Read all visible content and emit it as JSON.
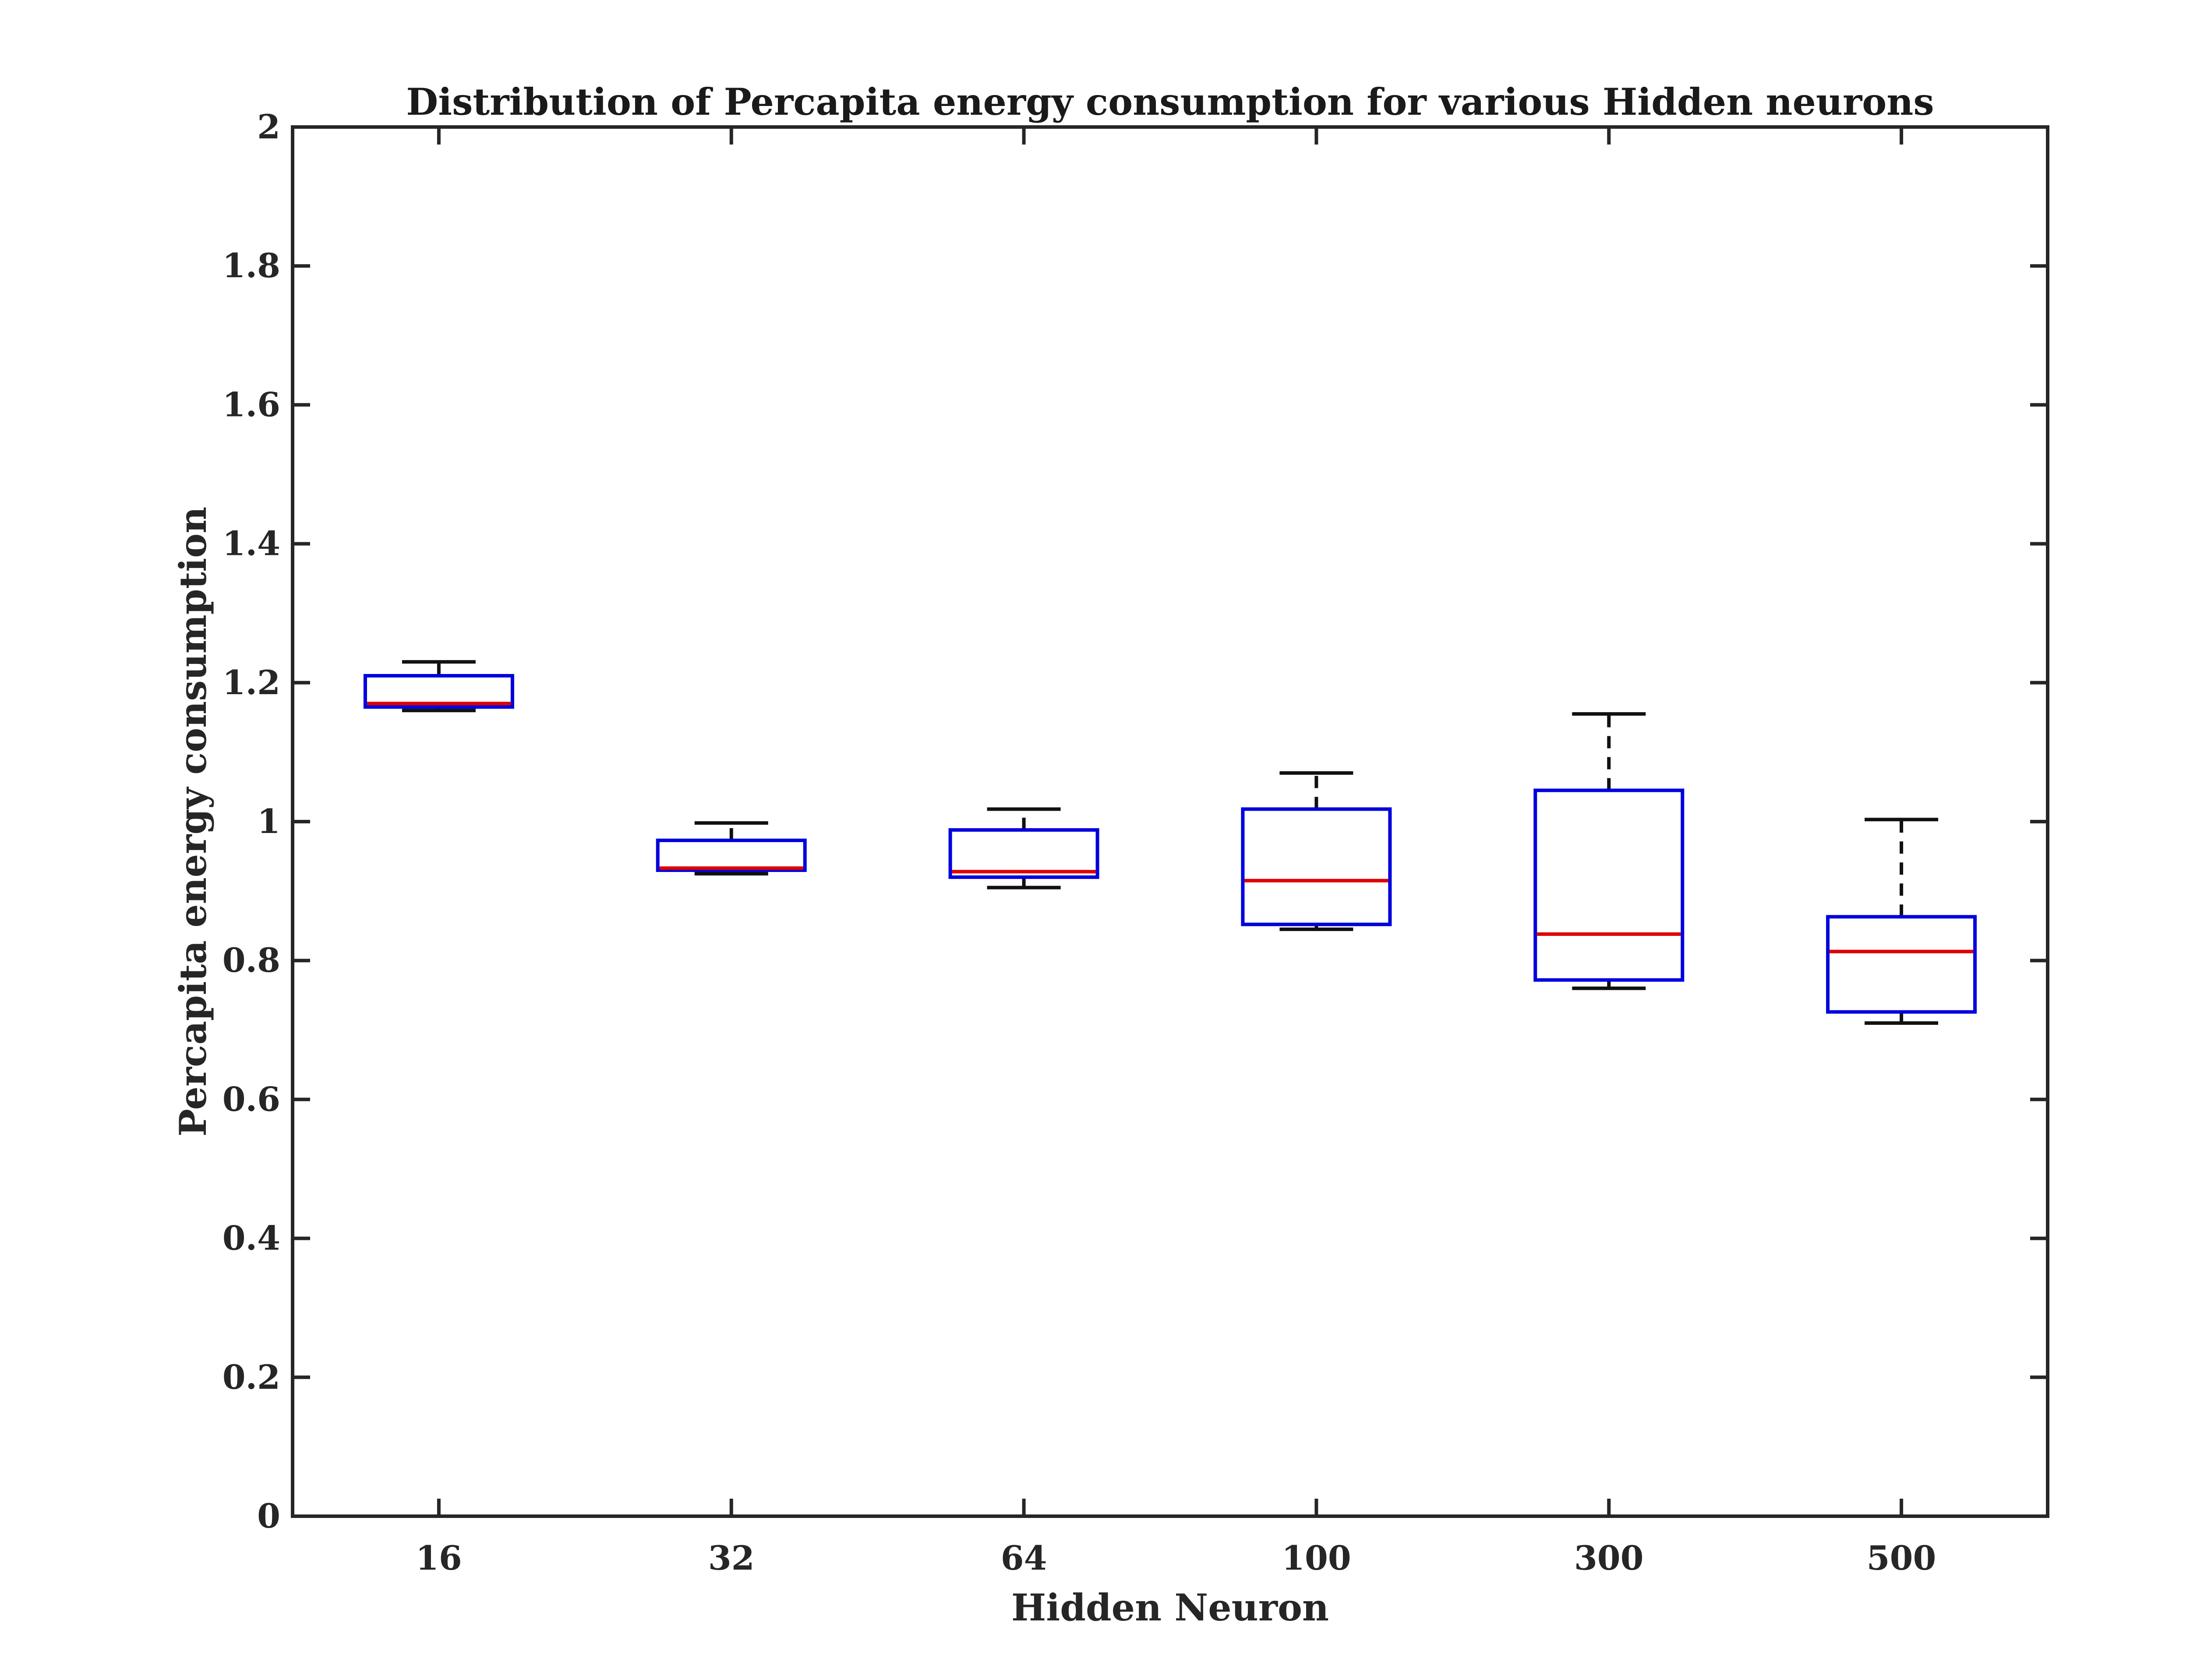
{
  "chart_data": {
    "type": "box",
    "title": "Distribution of Percapita energy consumption for various Hidden neurons",
    "xlabel": "Hidden Neuron",
    "ylabel": "Percapita energy consumption",
    "ylim": [
      0,
      2
    ],
    "yticks": [
      "0",
      "0.2",
      "0.4",
      "0.6",
      "0.8",
      "1",
      "1.2",
      "1.4",
      "1.6",
      "1.8",
      "2"
    ],
    "categories": [
      "16",
      "32",
      "64",
      "100",
      "300",
      "500"
    ],
    "boxes": [
      {
        "whisker_low": 1.16,
        "q1": 1.165,
        "median": 1.17,
        "q3": 1.21,
        "whisker_high": 1.23
      },
      {
        "whisker_low": 0.925,
        "q1": 0.93,
        "median": 0.933,
        "q3": 0.973,
        "whisker_high": 0.998
      },
      {
        "whisker_low": 0.905,
        "q1": 0.92,
        "median": 0.928,
        "q3": 0.988,
        "whisker_high": 1.018
      },
      {
        "whisker_low": 0.845,
        "q1": 0.852,
        "median": 0.915,
        "q3": 1.018,
        "whisker_high": 1.07
      },
      {
        "whisker_low": 0.76,
        "q1": 0.772,
        "median": 0.838,
        "q3": 1.045,
        "whisker_high": 1.155
      },
      {
        "whisker_low": 0.71,
        "q1": 0.726,
        "median": 0.813,
        "q3": 0.863,
        "whisker_high": 1.003
      }
    ],
    "colors": {
      "box": "#0000dd",
      "median": "#dd0000",
      "whisker": "#111111",
      "axis": "#262626"
    },
    "grid": false
  }
}
